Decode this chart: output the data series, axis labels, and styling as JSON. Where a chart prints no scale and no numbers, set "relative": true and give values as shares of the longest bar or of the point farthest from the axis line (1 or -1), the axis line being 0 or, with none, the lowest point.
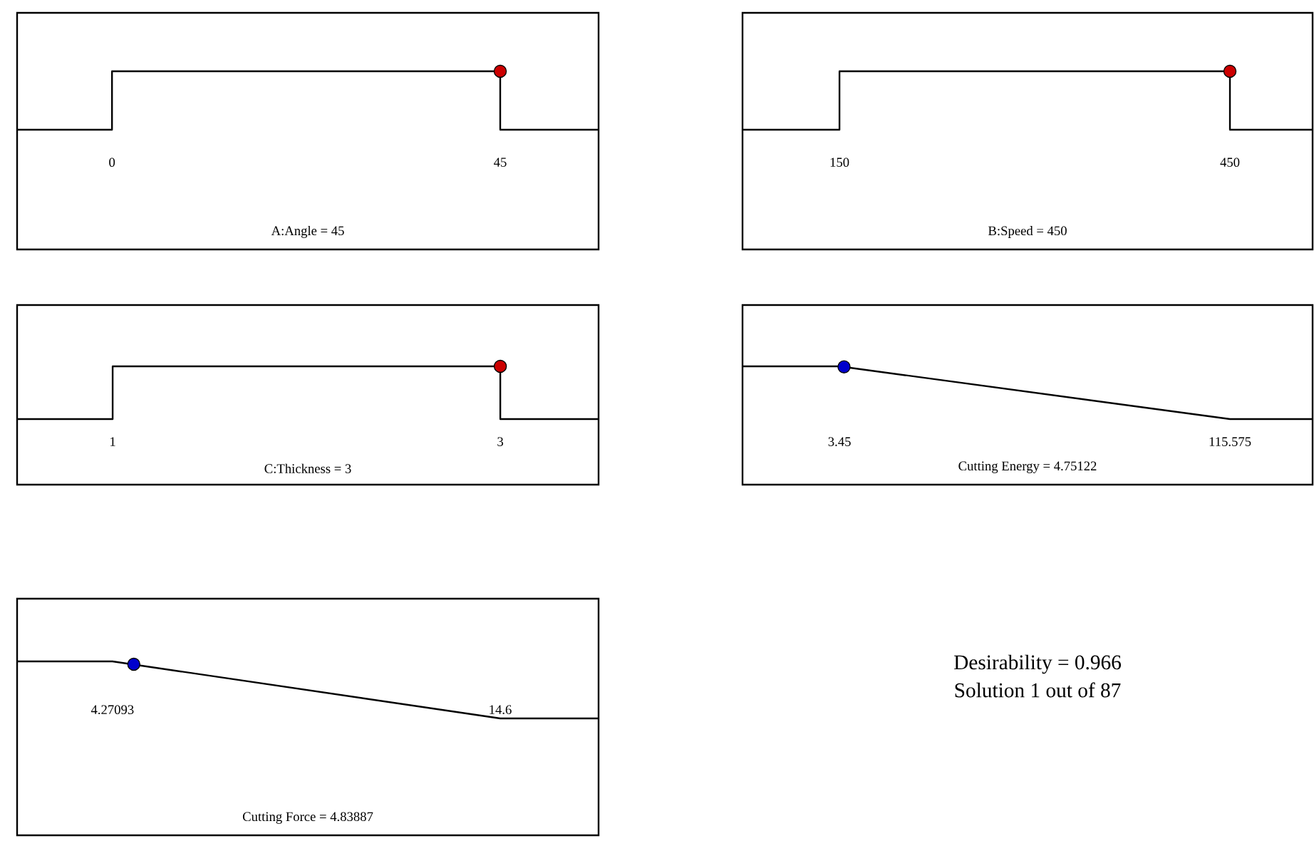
{
  "chart_data": [
    {
      "type": "line",
      "xlabel": "A:Angle = 45",
      "relative": true,
      "tick_labels": "x",
      "xlim": [
        -11,
        56.4
      ],
      "xticks": [
        0,
        45
      ],
      "series": [
        {
          "color": "#000000",
          "x": [
            -11,
            0,
            0,
            45,
            45,
            56.4
          ],
          "values": [
            0,
            0,
            1,
            1,
            0,
            0
          ]
        },
        {
          "type": "scatter",
          "marker": "circle",
          "color": "#cc0000",
          "x": [
            45
          ],
          "values": [
            1
          ]
        }
      ]
    },
    {
      "type": "line",
      "xlabel": "B:Speed = 450",
      "relative": true,
      "tick_labels": "x",
      "xlim": [
        75.5,
        513.5
      ],
      "xticks": [
        150,
        450
      ],
      "series": [
        {
          "color": "#000000",
          "x": [
            75.5,
            150,
            150,
            450,
            450,
            513.5
          ],
          "values": [
            0,
            0,
            1,
            1,
            0,
            0
          ]
        },
        {
          "type": "scatter",
          "marker": "circle",
          "color": "#cc0000",
          "x": [
            450
          ],
          "values": [
            1
          ]
        }
      ]
    },
    {
      "type": "line",
      "xlabel": "C:Thickness  = 3",
      "relative": true,
      "tick_labels": "x",
      "xlim": [
        0.507,
        3.507
      ],
      "xticks": [
        1,
        3
      ],
      "series": [
        {
          "color": "#000000",
          "x": [
            0.507,
            1,
            1,
            3,
            3,
            3.507
          ],
          "values": [
            0,
            0,
            1,
            1,
            0,
            0
          ]
        },
        {
          "type": "scatter",
          "marker": "circle",
          "color": "#cc0000",
          "x": [
            3
          ],
          "values": [
            1
          ]
        }
      ]
    },
    {
      "type": "line",
      "xlabel": "Cutting Energy = 4.75122",
      "relative": true,
      "tick_labels": "x",
      "xlim": [
        -24.4,
        139.3
      ],
      "xticks": [
        3.45,
        115.575
      ],
      "series": [
        {
          "color": "#000000",
          "x": [
            -24.4,
            3.45,
            115.575,
            139.3
          ],
          "values": [
            1,
            1,
            0,
            0
          ]
        },
        {
          "type": "scatter",
          "marker": "circle",
          "color": "#0000cc",
          "x": [
            4.75122
          ],
          "values": [
            0.99
          ]
        }
      ]
    },
    {
      "type": "line",
      "xlabel": "Cutting Force = 4.83887",
      "relative": true,
      "tick_labels": "x",
      "xlim": [
        1.73,
        17.22
      ],
      "xticks": [
        4.27093,
        14.6
      ],
      "series": [
        {
          "color": "#000000",
          "x": [
            1.73,
            4.27093,
            14.6,
            17.22
          ],
          "values": [
            1,
            1,
            0,
            0
          ]
        },
        {
          "type": "scatter",
          "marker": "circle",
          "color": "#0000cc",
          "x": [
            4.83887
          ],
          "values": [
            0.95
          ]
        }
      ]
    },
    {
      "type": "other",
      "annotations": [
        "Desirability = 0.966",
        "Solution 1 out of 87"
      ]
    }
  ]
}
